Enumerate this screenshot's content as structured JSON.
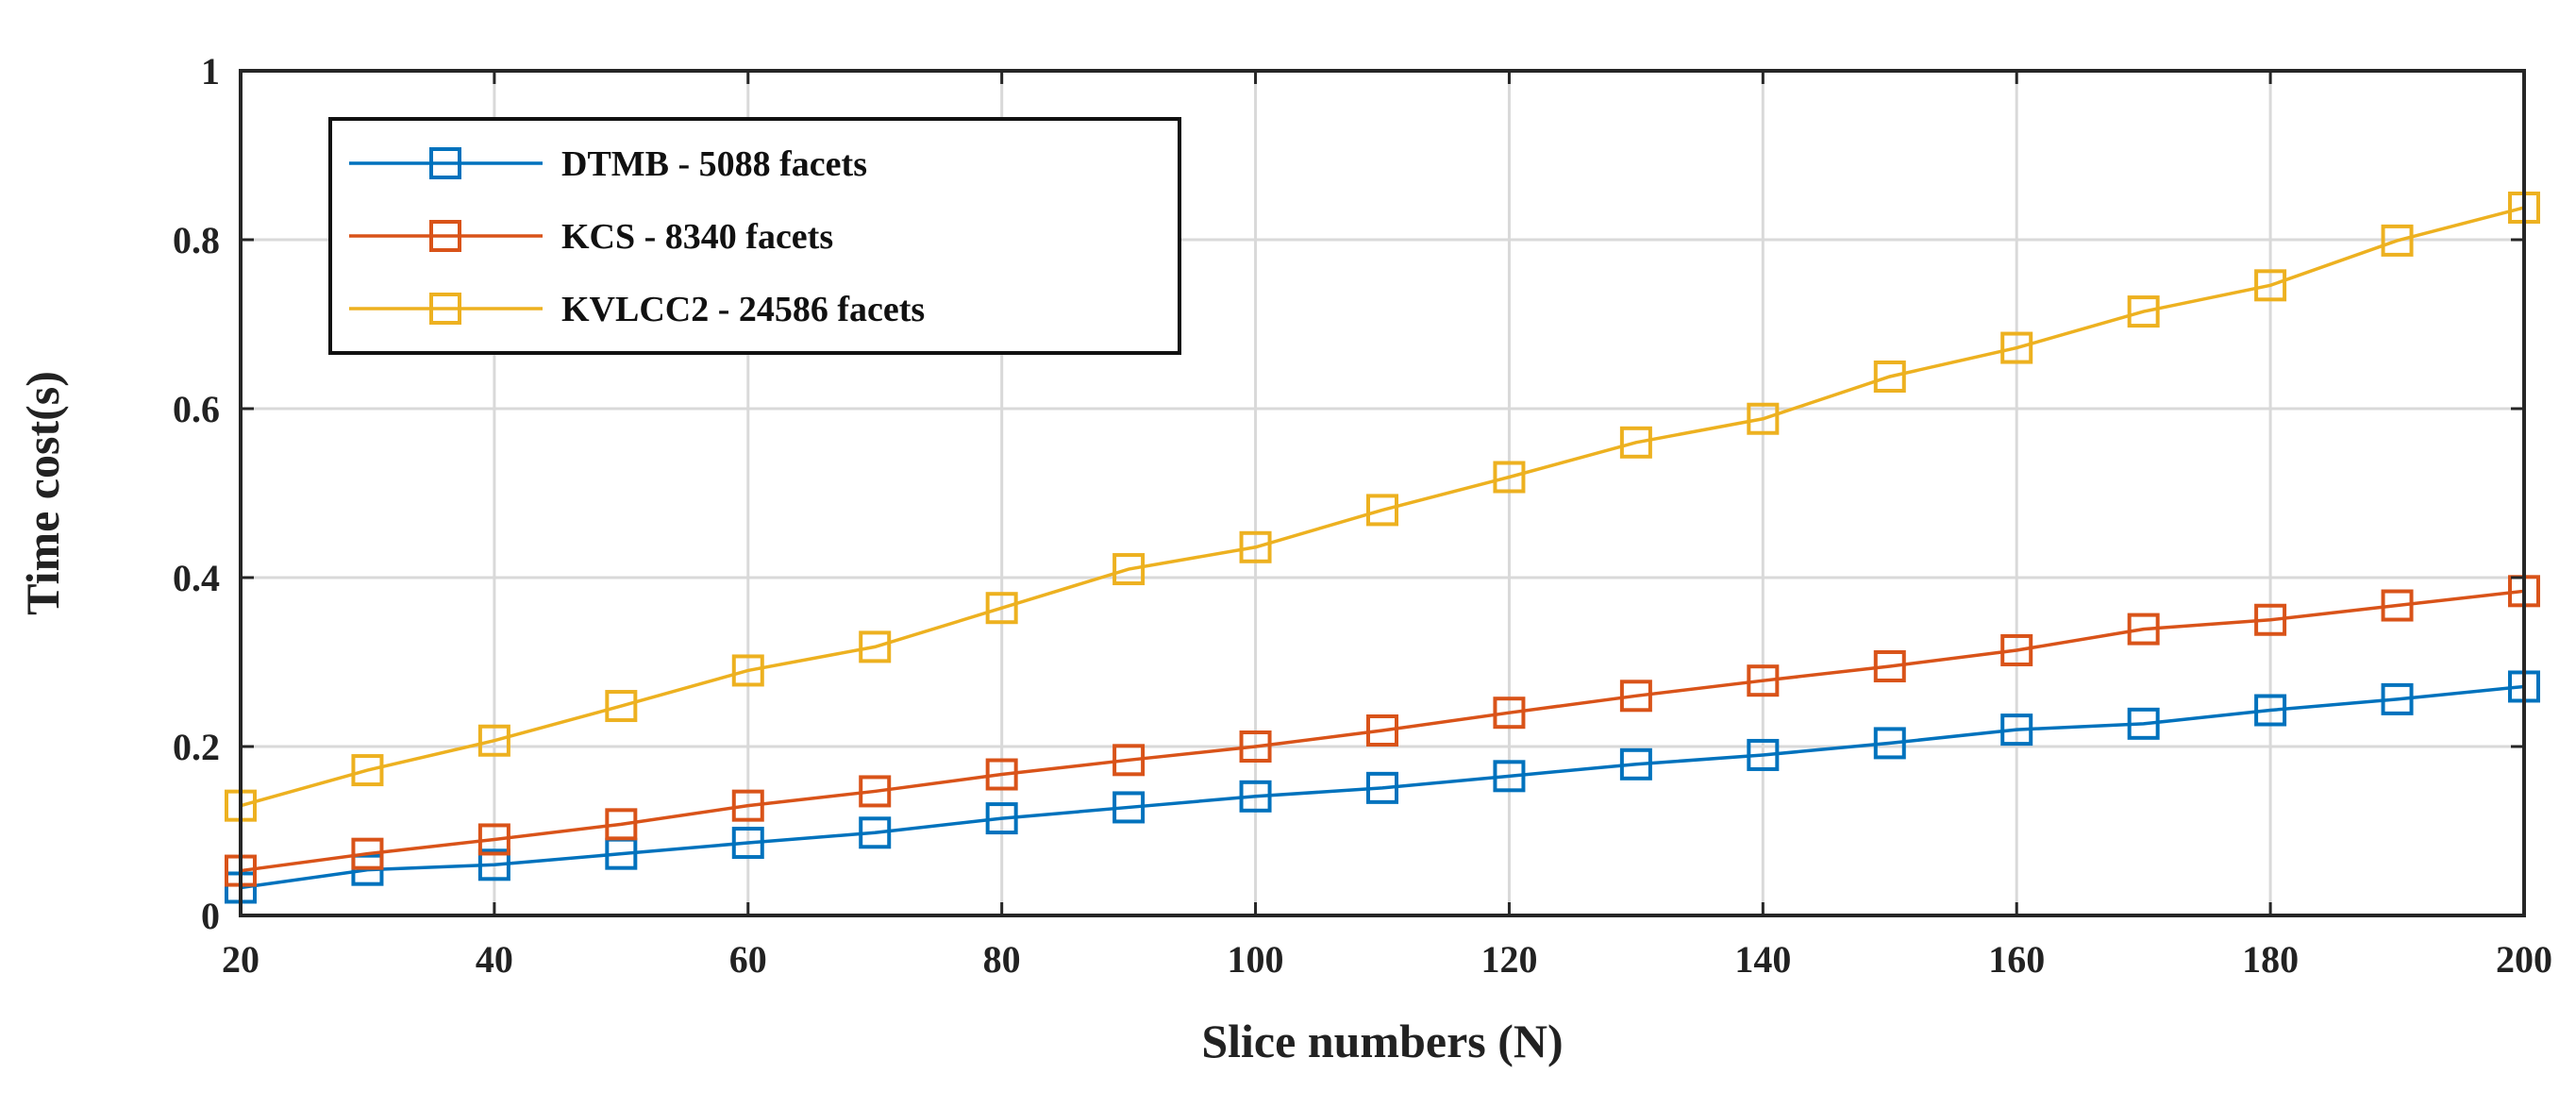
{
  "chart_data": {
    "type": "line",
    "title": "",
    "xlabel": "Slice numbers (N)",
    "ylabel": "Time cost(s)",
    "xlim": [
      20,
      200
    ],
    "ylim": [
      0,
      1
    ],
    "grid": true,
    "legend_position": "top-left",
    "x_ticks": [
      "20",
      "40",
      "60",
      "80",
      "100",
      "120",
      "140",
      "160",
      "180",
      "200"
    ],
    "y_ticks": [
      "0",
      "0.2",
      "0.4",
      "0.6",
      "0.8",
      "1"
    ],
    "x": [
      20,
      30,
      40,
      50,
      60,
      70,
      80,
      90,
      100,
      110,
      120,
      130,
      140,
      150,
      160,
      170,
      180,
      190,
      200
    ],
    "series": [
      {
        "name": "DTMB - 5088 facets",
        "color": "#0072bd",
        "marker": "square",
        "values": [
          0.033,
          0.054,
          0.06,
          0.073,
          0.086,
          0.098,
          0.115,
          0.128,
          0.141,
          0.151,
          0.165,
          0.179,
          0.19,
          0.204,
          0.22,
          0.227,
          0.243,
          0.256,
          0.271
        ]
      },
      {
        "name": "KCS - 8340 facets",
        "color": "#d95319",
        "marker": "square",
        "values": [
          0.053,
          0.073,
          0.09,
          0.108,
          0.13,
          0.147,
          0.167,
          0.184,
          0.2,
          0.219,
          0.24,
          0.26,
          0.278,
          0.295,
          0.314,
          0.339,
          0.35,
          0.367,
          0.384
        ]
      },
      {
        "name": "KVLCC2 - 24586 facets",
        "color": "#edb120",
        "marker": "square",
        "values": [
          0.13,
          0.172,
          0.207,
          0.248,
          0.29,
          0.318,
          0.364,
          0.41,
          0.436,
          0.48,
          0.519,
          0.56,
          0.588,
          0.638,
          0.672,
          0.715,
          0.746,
          0.799,
          0.838
        ]
      }
    ]
  }
}
